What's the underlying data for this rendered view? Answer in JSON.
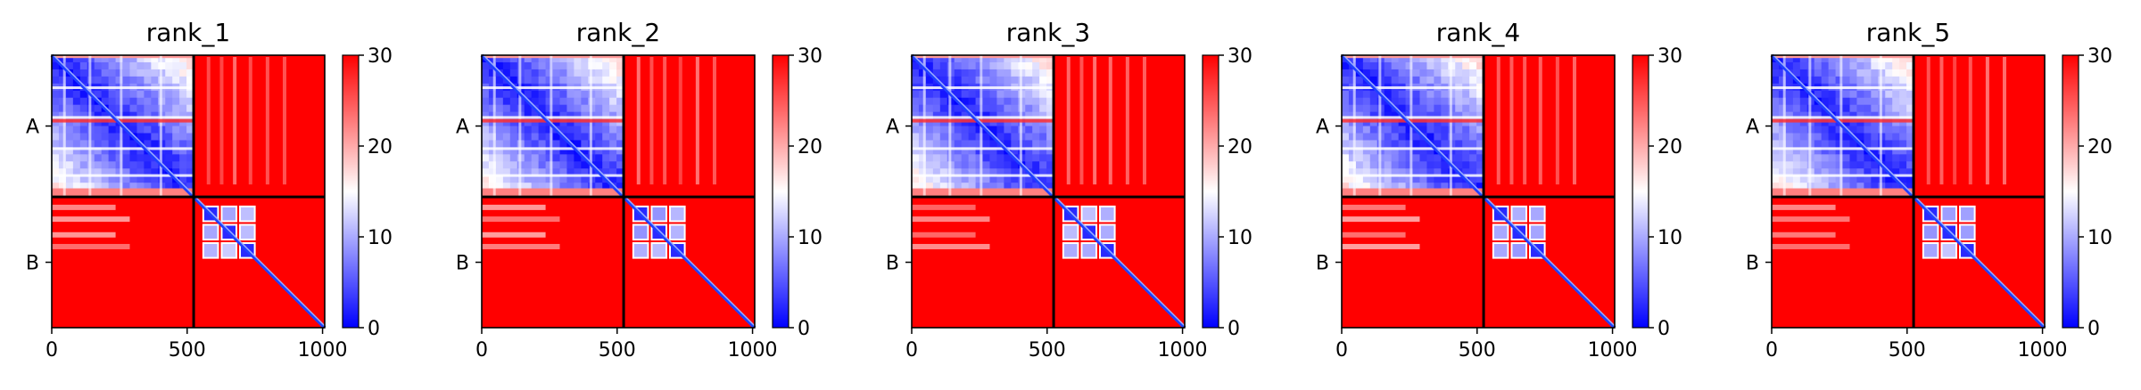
{
  "chart_data": [
    {
      "type": "heatmap",
      "title": "rank_1",
      "chains": [
        "A",
        "B"
      ],
      "x_ticks": [
        0,
        500,
        1000
      ],
      "chain_boundary": 524,
      "residue_count": 1008,
      "colorbar": {
        "range": [
          0,
          30
        ],
        "ticks": [
          0,
          10,
          20,
          30
        ],
        "colors": [
          "#0000ff",
          "#ffffff",
          "#ff0000"
        ]
      },
      "grid": false
    },
    {
      "type": "heatmap",
      "title": "rank_2",
      "chains": [
        "A",
        "B"
      ],
      "x_ticks": [
        0,
        500,
        1000
      ],
      "chain_boundary": 524,
      "residue_count": 1008,
      "colorbar": {
        "range": [
          0,
          30
        ],
        "ticks": [
          0,
          10,
          20,
          30
        ],
        "colors": [
          "#0000ff",
          "#ffffff",
          "#ff0000"
        ]
      },
      "grid": false
    },
    {
      "type": "heatmap",
      "title": "rank_3",
      "chains": [
        "A",
        "B"
      ],
      "x_ticks": [
        0,
        500,
        1000
      ],
      "chain_boundary": 524,
      "residue_count": 1008,
      "colorbar": {
        "range": [
          0,
          30
        ],
        "ticks": [
          0,
          10,
          20,
          30
        ],
        "colors": [
          "#0000ff",
          "#ffffff",
          "#ff0000"
        ]
      },
      "grid": false
    },
    {
      "type": "heatmap",
      "title": "rank_4",
      "chains": [
        "A",
        "B"
      ],
      "x_ticks": [
        0,
        500,
        1000
      ],
      "chain_boundary": 524,
      "residue_count": 1008,
      "colorbar": {
        "range": [
          0,
          30
        ],
        "ticks": [
          0,
          10,
          20,
          30
        ],
        "colors": [
          "#0000ff",
          "#ffffff",
          "#ff0000"
        ]
      },
      "grid": false
    },
    {
      "type": "heatmap",
      "title": "rank_5",
      "chains": [
        "A",
        "B"
      ],
      "x_ticks": [
        0,
        500,
        1000
      ],
      "chain_boundary": 524,
      "residue_count": 1008,
      "colorbar": {
        "range": [
          0,
          30
        ],
        "ticks": [
          0,
          10,
          20,
          30
        ],
        "colors": [
          "#0000ff",
          "#ffffff",
          "#ff0000"
        ]
      },
      "grid": false
    }
  ]
}
